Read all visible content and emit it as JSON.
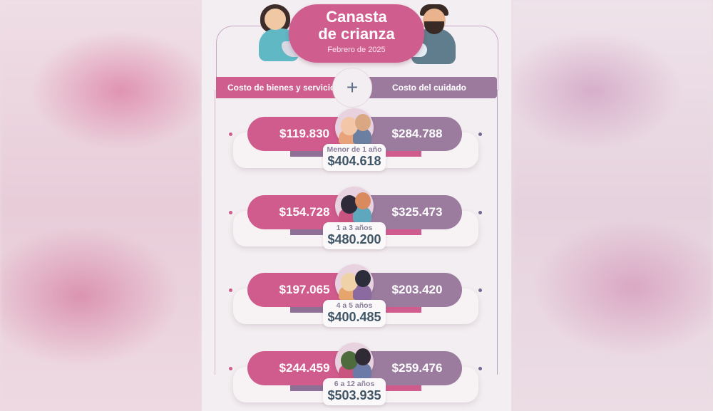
{
  "header": {
    "title_line1": "Canasta",
    "title_line2": "de crianza",
    "subtitle": "Febrero de 2025"
  },
  "categories": {
    "left": "Costo de bienes y servicios",
    "separator": "+",
    "right": "Costo del cuidado"
  },
  "rows": [
    {
      "goods": "$119.830",
      "care": "$284.788",
      "age": "Menor de 1 año",
      "total": "$404.618"
    },
    {
      "goods": "$154.728",
      "care": "$325.473",
      "age": "1 a 3 años",
      "total": "$480.200"
    },
    {
      "goods": "$197.065",
      "care": "$203.420",
      "age": "4 a 5 años",
      "total": "$400.485"
    },
    {
      "goods": "$244.459",
      "care": "$259.476",
      "age": "6 a 12 años",
      "total": "$503.935"
    }
  ],
  "colors": {
    "pink": "#cf5d8e",
    "mauve": "#9c7a9e",
    "total_text": "#3f5566"
  }
}
